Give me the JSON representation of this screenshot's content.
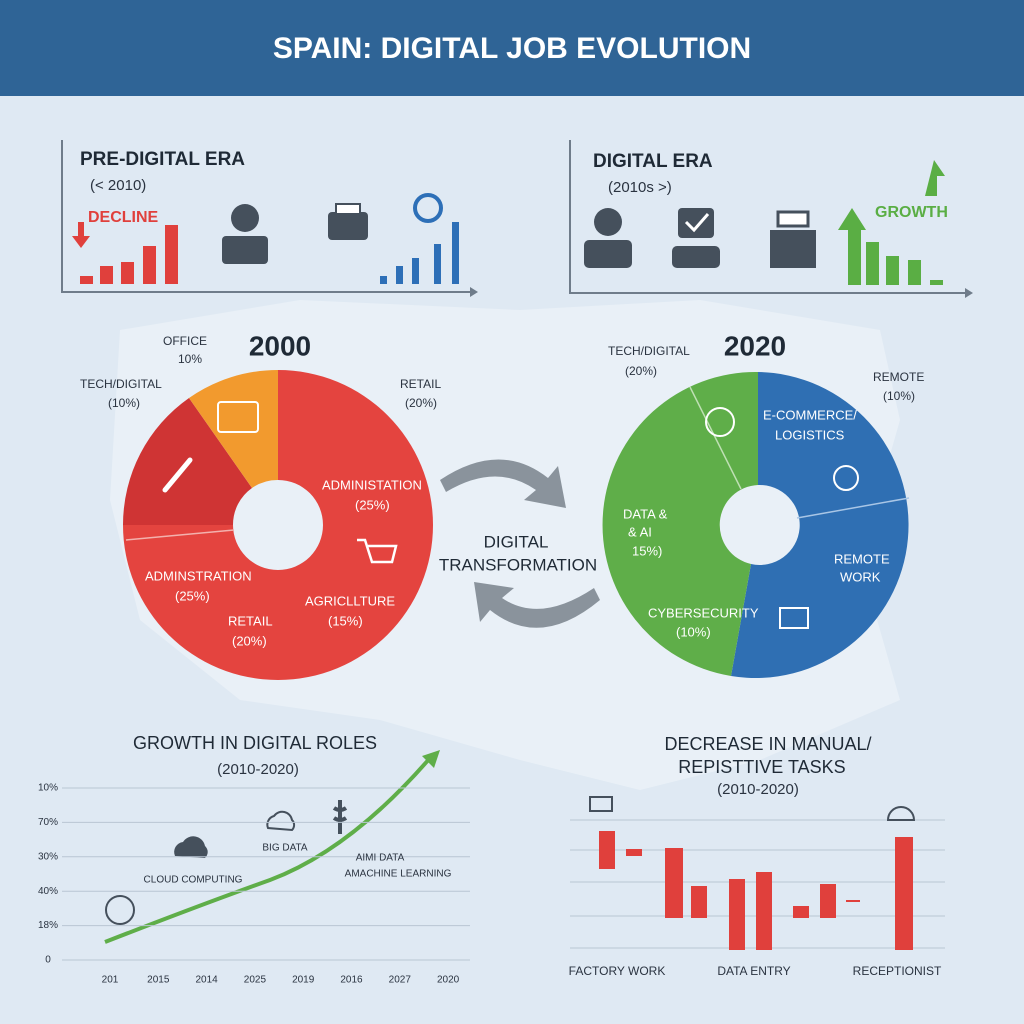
{
  "header": {
    "title": "SPAIN: DIGITAL JOB EVOLUTION"
  },
  "pre_digital": {
    "title": "PRE-DIGITAL ERA",
    "subtitle": "(< 2010)",
    "trend": "DECLINE"
  },
  "digital": {
    "title": "DIGITAL ERA",
    "subtitle": "(2010s >)",
    "trend": "GROWTH"
  },
  "pie_2000": {
    "year": "2000",
    "labels": [
      [
        "OFFICE",
        "10%"
      ],
      [
        "TECH/DIGITAL",
        "(10%)"
      ],
      [
        "RETAIL",
        "(20%)"
      ],
      [
        "ADMINISTATION",
        "(25%)"
      ],
      [
        "ADMINSTRATION",
        "(25%)"
      ],
      [
        "RETAIL",
        "(20%)"
      ],
      [
        "AGRICLLTURE",
        "(15%)"
      ]
    ]
  },
  "pie_2020": {
    "year": "2020",
    "labels": [
      [
        "TECH/DIGITAL",
        "(20%)"
      ],
      [
        "REMOTE",
        "(10%)"
      ],
      [
        "E-COMMERCE/",
        "LOGISTICS"
      ],
      [
        "DATA &",
        "& AI",
        "15%)"
      ],
      [
        "REMOTE",
        "WORK"
      ],
      [
        "CYBERSECURITY",
        "(10%)"
      ]
    ]
  },
  "center": {
    "lines": [
      "DIGITAL",
      "TRANSFORMATION"
    ]
  },
  "growth": {
    "title": "GROWTH IN DIGITAL ROLES",
    "subtitle": "(2010-2020)",
    "y_labels": [
      "10%",
      "70%",
      "30%",
      "40%",
      "18%",
      "0"
    ],
    "x_labels": [
      "201",
      "2015",
      "2014",
      "2025",
      "2019",
      "2016",
      "2027",
      "2020"
    ],
    "annotations": [
      "CLOUD COMPUTING",
      "BIG DATA",
      "AIMI DATA",
      "AMACHINE LEARNING"
    ]
  },
  "decrease": {
    "title_lines": [
      "DECREASE IN MANUAL/",
      "REPISTTIVE TASKS"
    ],
    "subtitle": "(2010-2020)",
    "categories": [
      "FACTORY WORK",
      "DATA ENTRY",
      "RECEPTIONIST"
    ]
  }
}
